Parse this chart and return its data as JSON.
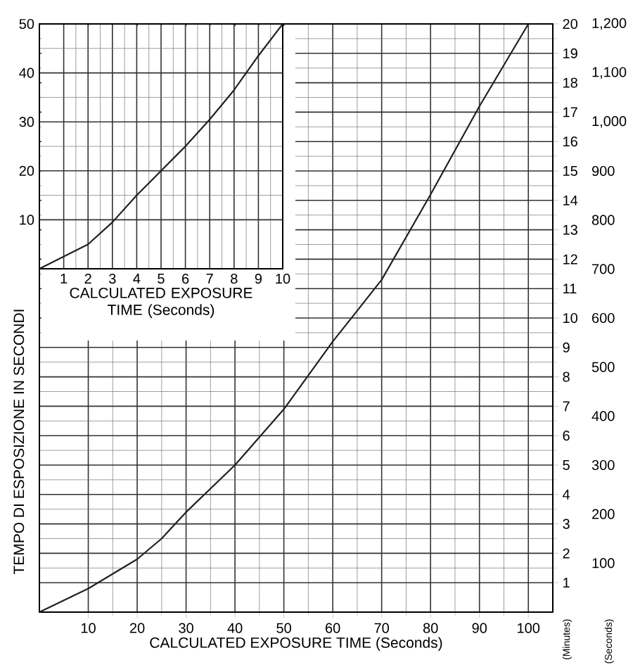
{
  "chart_data": [
    {
      "type": "line",
      "xlabel": "CALCULATED EXPOSURE TIME (Seconds)",
      "ylabel": "(Minutes)",
      "y2label": "(Seconds)",
      "annotations": [
        "TEMPO DI ESPOSIZIONE IN SECONDI"
      ],
      "x": [
        0,
        10,
        20,
        25,
        30,
        40,
        50,
        60,
        70,
        80,
        90,
        100
      ],
      "series": [
        {
          "color": "#231f20",
          "values": [
            0,
            0.8,
            1.8,
            2.5,
            3.4,
            5.0,
            6.9,
            9.2,
            11.3,
            14.2,
            17.2,
            20
          ]
        }
      ],
      "xlim": [
        0,
        105
      ],
      "xticks": [
        10,
        20,
        30,
        40,
        50,
        60,
        70,
        80,
        90,
        100
      ],
      "ylim": [
        0,
        20
      ],
      "yticks": [
        1,
        2,
        3,
        4,
        5,
        6,
        7,
        8,
        9,
        10,
        11,
        12,
        13,
        14,
        15,
        16,
        17,
        18,
        19,
        20
      ],
      "y2lim": [
        0,
        1200
      ],
      "y2ticks": [
        100,
        200,
        300,
        400,
        500,
        600,
        700,
        800,
        900,
        {
          "value": 1000,
          "label": "1,000"
        },
        {
          "value": 1100,
          "label": "1,100"
        },
        {
          "value": 1200,
          "label": "1,200"
        }
      ],
      "grid": true,
      "marker": "none",
      "line_style": "solid"
    },
    {
      "type": "line",
      "xlabel": "CALCULATED EXPOSURE TIME (Seconds)",
      "x": [
        0,
        1,
        2,
        3,
        4,
        5,
        6,
        7,
        8,
        9,
        10
      ],
      "series": [
        {
          "color": "#231f20",
          "values": [
            0,
            2.5,
            5,
            9.5,
            15,
            20,
            25,
            30.5,
            36.5,
            43.5,
            50
          ]
        }
      ],
      "xlim": [
        0,
        10
      ],
      "xticks": [
        1,
        2,
        3,
        4,
        5,
        6,
        7,
        8,
        9,
        10
      ],
      "ylim": [
        0,
        50
      ],
      "yticks": [
        10,
        20,
        30,
        40,
        50
      ],
      "grid": true,
      "marker": "none",
      "line_style": "solid"
    }
  ]
}
